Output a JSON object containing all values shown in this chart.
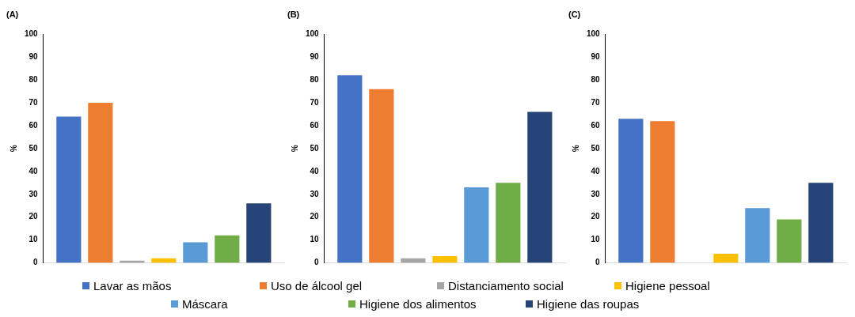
{
  "chart_data": [
    {
      "type": "bar",
      "title": "(A)",
      "ylabel": "%",
      "categories": [
        null
      ],
      "ylim": [
        0,
        100
      ],
      "yticks": [
        0,
        10,
        20,
        30,
        40,
        50,
        60,
        70,
        80,
        90,
        100
      ],
      "legend": "bottom",
      "series": [
        {
          "name": "Lavar as mãos",
          "color": "#4472c4",
          "values": [
            64
          ]
        },
        {
          "name": "Uso de álcool gel",
          "color": "#ed7d31",
          "values": [
            70
          ]
        },
        {
          "name": "Distanciamento social",
          "color": "#a5a5a5",
          "values": [
            1
          ]
        },
        {
          "name": "Higiene pessoal",
          "color": "#ffc000",
          "values": [
            2
          ]
        },
        {
          "name": "Máscara",
          "color": "#5b9bd5",
          "values": [
            9
          ]
        },
        {
          "name": "Higiene dos alimentos",
          "color": "#70ad47",
          "values": [
            12
          ]
        },
        {
          "name": "Higiene das roupas",
          "color": "#264478",
          "values": [
            26
          ]
        }
      ]
    },
    {
      "type": "bar",
      "title": "(B)",
      "ylabel": "%",
      "categories": [
        null
      ],
      "ylim": [
        0,
        100
      ],
      "yticks": [
        0,
        10,
        20,
        30,
        40,
        50,
        60,
        70,
        80,
        90,
        100
      ],
      "series": [
        {
          "color": "#4472c4",
          "values": [
            82
          ]
        },
        {
          "color": "#ed7d31",
          "values": [
            76
          ]
        },
        {
          "color": "#a5a5a5",
          "values": [
            2
          ]
        },
        {
          "color": "#ffc000",
          "values": [
            3
          ]
        },
        {
          "color": "#5b9bd5",
          "values": [
            33
          ]
        },
        {
          "color": "#70ad47",
          "values": [
            35
          ]
        },
        {
          "color": "#264478",
          "values": [
            66
          ]
        }
      ]
    },
    {
      "type": "bar",
      "title": "(C)",
      "ylabel": "%",
      "categories": [
        null
      ],
      "ylim": [
        0,
        100
      ],
      "yticks": [
        0,
        10,
        20,
        30,
        40,
        50,
        60,
        70,
        80,
        90,
        100
      ],
      "series": [
        {
          "color": "#4472c4",
          "values": [
            63
          ]
        },
        {
          "color": "#ed7d31",
          "values": [
            62
          ]
        },
        {
          "color": "#a5a5a5",
          "values": [
            0
          ]
        },
        {
          "color": "#ffc000",
          "values": [
            4
          ]
        },
        {
          "color": "#5b9bd5",
          "values": [
            24
          ]
        },
        {
          "color": "#70ad47",
          "values": [
            19
          ]
        },
        {
          "color": "#264478",
          "values": [
            35
          ]
        }
      ]
    }
  ]
}
